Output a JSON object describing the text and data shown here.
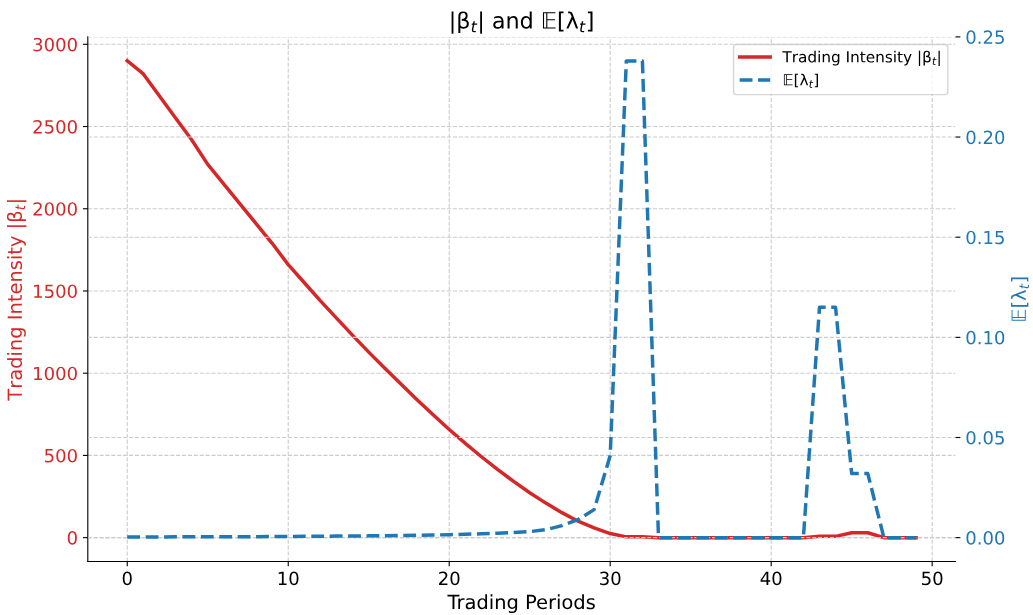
{
  "chart_data": {
    "type": "line",
    "title": "|β$_{t}$| and 𝔼[λ$_{t}$]",
    "xlabel": "Trading Periods",
    "ylabel": "Trading Intensity |β$_{t}$|",
    "y2label": "𝔼[λ$_{t}$]",
    "x": [
      0,
      1,
      2,
      3,
      4,
      5,
      6,
      7,
      8,
      9,
      10,
      11,
      12,
      13,
      14,
      15,
      16,
      17,
      18,
      19,
      20,
      21,
      22,
      23,
      24,
      25,
      26,
      27,
      28,
      29,
      30,
      31,
      32,
      33,
      34,
      35,
      36,
      37,
      38,
      39,
      40,
      41,
      42,
      43,
      44,
      45,
      46,
      47,
      48,
      49
    ],
    "series": [
      {
        "name": "Trading Intensity |β$_{t}$|",
        "color": "#d62728",
        "line_style": "solid",
        "values": [
          2900,
          2820,
          2685,
          2552,
          2420,
          2270,
          2150,
          2030,
          1910,
          1790,
          1660,
          1550,
          1440,
          1335,
          1230,
          1128,
          1030,
          934,
          839,
          747,
          658,
          573,
          492,
          415,
          342,
          273,
          210,
          152,
          100,
          60,
          25,
          5,
          5,
          0,
          0,
          0,
          0,
          0,
          0,
          0,
          0,
          0,
          0,
          8,
          8,
          30,
          30,
          0,
          0,
          0
        ]
      },
      {
        "name": "𝔼[λ$_{t}$]",
        "color": "#1f77b4",
        "line_style": "dashed",
        "axis": "y2",
        "values": [
          0.0003,
          0.0003,
          0.0003,
          0.0004,
          0.0004,
          0.0004,
          0.0005,
          0.0005,
          0.0005,
          0.0006,
          0.0006,
          0.0007,
          0.0007,
          0.0008,
          0.0008,
          0.0009,
          0.001,
          0.0011,
          0.0012,
          0.0013,
          0.0015,
          0.0017,
          0.0019,
          0.0022,
          0.0026,
          0.003,
          0.004,
          0.006,
          0.009,
          0.014,
          0.041,
          0.238,
          0.238,
          0,
          0,
          0,
          0,
          0,
          0,
          0,
          0,
          0,
          0,
          0.115,
          0.115,
          0.032,
          0.032,
          0,
          0,
          0
        ]
      }
    ],
    "xlim": [
      -2.45,
      51.45
    ],
    "xticks": [
      0,
      10,
      20,
      30,
      40,
      50
    ],
    "ylim": [
      -145,
      3045
    ],
    "yticks": [
      0,
      500,
      1000,
      1500,
      2000,
      2500,
      3000
    ],
    "y2lim": [
      -0.0119,
      0.25
    ],
    "y2ticks": [
      {
        "value": 0,
        "label": "0.00"
      },
      {
        "value": 0.05,
        "label": "0.05"
      },
      {
        "value": 0.1,
        "label": "0.10"
      },
      {
        "value": 0.15,
        "label": "0.15"
      },
      {
        "value": 0.2,
        "label": "0.20"
      },
      {
        "value": 0.25,
        "label": "0.25"
      }
    ],
    "grid": true,
    "legend": "top right"
  }
}
